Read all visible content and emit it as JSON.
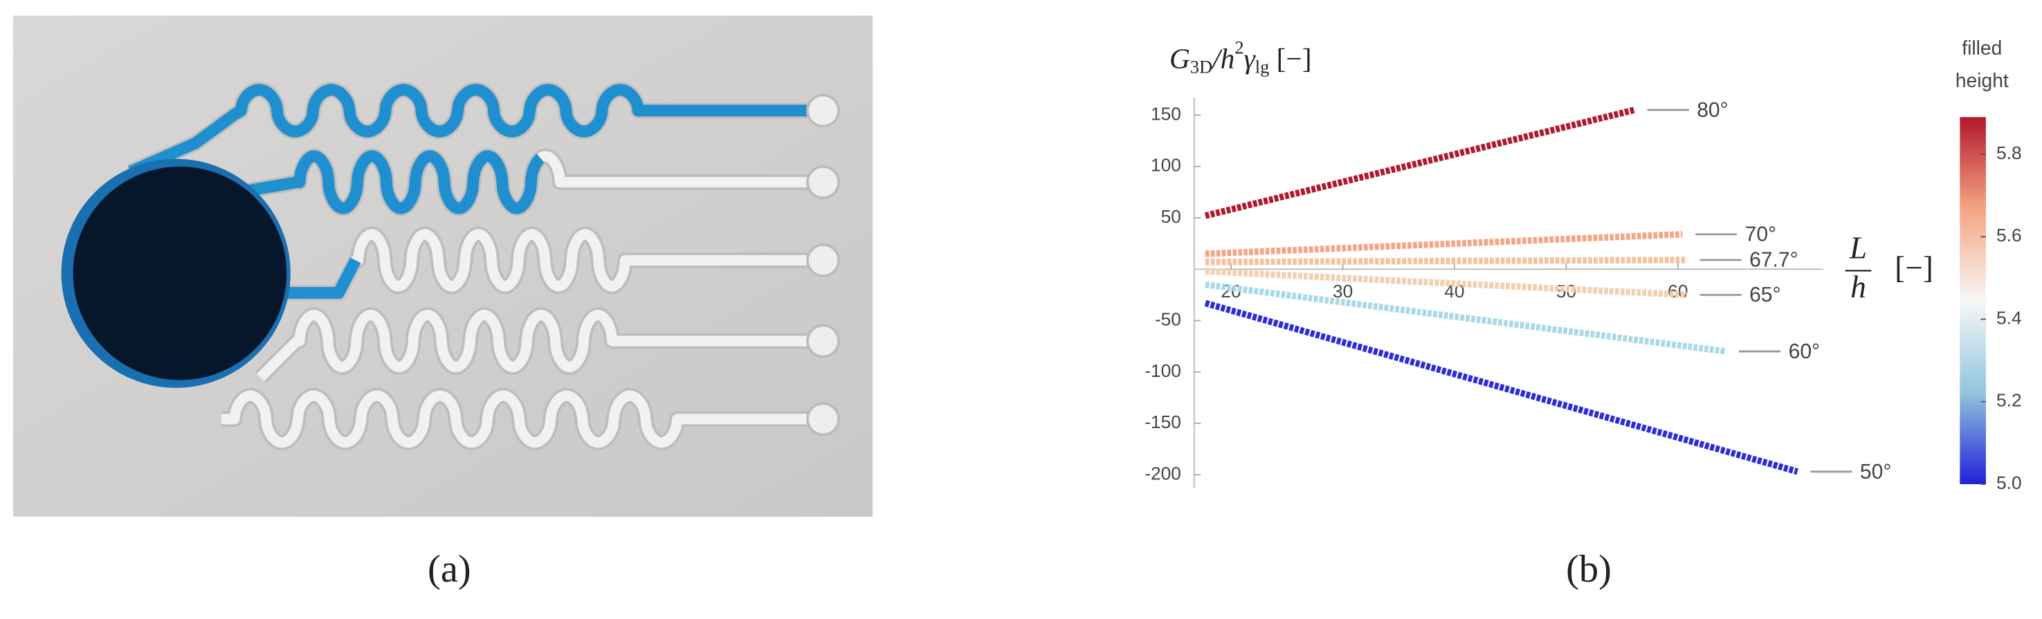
{
  "captions": [
    "(a)",
    "(b)"
  ],
  "chart_data": {
    "type": "line",
    "ylabel_parts": [
      {
        "text": "G"
      },
      {
        "text": "3D",
        "sub": true
      },
      {
        "text": "/h"
      },
      {
        "text": "2",
        "sup": true
      },
      {
        "text": "γ"
      },
      {
        "text": "lg",
        "sub": true
      },
      {
        "text": "  [−]"
      }
    ],
    "xlabel": {
      "numerator": "L",
      "denominator": "h",
      "unit": "[−]"
    },
    "xlim": [
      16.7,
      73
    ],
    "xticks": [
      20,
      30,
      40,
      50,
      60
    ],
    "ylim": [
      -213,
      167
    ],
    "yticks": [
      -200,
      -150,
      -100,
      -50,
      50,
      100,
      150
    ],
    "series": [
      {
        "name": "80°",
        "color": "#b2182b",
        "x": [
          17.7,
          56.1
        ],
        "values": [
          52,
          155
        ]
      },
      {
        "name": "70°",
        "color": "#f4a582",
        "x": [
          17.7,
          60.4
        ],
        "values": [
          15,
          34
        ]
      },
      {
        "name": "67.7°",
        "color": "#f6c29c",
        "x": [
          17.7,
          60.8
        ],
        "values": [
          7,
          9
        ]
      },
      {
        "name": "65°",
        "color": "#f2cfae",
        "x": [
          17.7,
          60.8
        ],
        "values": [
          -2,
          -25
        ]
      },
      {
        "name": "60°",
        "color": "#a9d9e6",
        "x": [
          17.7,
          64.3
        ],
        "values": [
          -15,
          -80
        ]
      },
      {
        "name": "50°",
        "color": "#2b2bd9",
        "x": [
          17.7,
          70.7
        ],
        "values": [
          -33,
          -197
        ]
      }
    ],
    "colorbar": {
      "title_lines": [
        "filled",
        "height"
      ],
      "clim": [
        5.0,
        5.89
      ],
      "ticks": [
        {
          "value": 5,
          "label": "5.0"
        },
        5.2,
        5.4,
        5.6,
        5.8
      ],
      "colormap": [
        "#2020d8",
        "#92c5de",
        "#f7f7f7",
        "#f4a582",
        "#b2182b"
      ]
    }
  }
}
